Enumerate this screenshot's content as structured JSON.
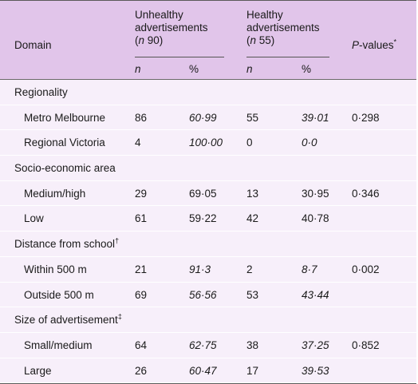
{
  "table": {
    "header": {
      "domain": "Domain",
      "unhealthy_title": "Unhealthy advertisements",
      "unhealthy_n_prefix": "(",
      "unhealthy_n_italic": "n",
      "unhealthy_n_value": " 90)",
      "healthy_title": "Healthy advertisements",
      "healthy_n_prefix": "(",
      "healthy_n_italic": "n",
      "healthy_n_value": " 55)",
      "pvalues_italic": "P",
      "pvalues_rest": "-values",
      "pvalues_mark": "*",
      "sub_n": "n",
      "sub_pct": "%"
    },
    "sections": [
      {
        "title": "Regionality",
        "mark": "",
        "rows": [
          {
            "label": "Metro Melbourne",
            "un": "86",
            "upct": "60·99",
            "hn": "55",
            "hpct": "39·01",
            "p": "0·298",
            "italic_pct": true
          },
          {
            "label": "Regional Victoria",
            "un": "4",
            "upct": "100·00",
            "hn": "0",
            "hpct": "0·0",
            "p": "",
            "italic_pct": true
          }
        ]
      },
      {
        "title": "Socio-economic area",
        "mark": "",
        "rows": [
          {
            "label": "Medium/high",
            "un": "29",
            "upct": "69·05",
            "hn": "13",
            "hpct": "30·95",
            "p": "0·346",
            "italic_pct": false
          },
          {
            "label": "Low",
            "un": "61",
            "upct": "59·22",
            "hn": "42",
            "hpct": "40·78",
            "p": "",
            "italic_pct": false
          }
        ]
      },
      {
        "title": "Distance from school",
        "mark": "†",
        "rows": [
          {
            "label": "Within 500 m",
            "un": "21",
            "upct": "91·3",
            "hn": "2",
            "hpct": "8·7",
            "p": "0·002",
            "italic_pct": true
          },
          {
            "label": "Outside 500 m",
            "un": "69",
            "upct": "56·56",
            "hn": "53",
            "hpct": "43·44",
            "p": "",
            "italic_pct": true
          }
        ]
      },
      {
        "title": "Size of advertisement",
        "mark": "‡",
        "rows": [
          {
            "label": "Small/medium",
            "un": "64",
            "upct": "62·75",
            "hn": "38",
            "hpct": "37·25",
            "p": "0·852",
            "italic_pct": true
          },
          {
            "label": "Large",
            "un": "26",
            "upct": "60·47",
            "hn": "17",
            "hpct": "39·53",
            "p": "",
            "italic_pct": true
          }
        ]
      }
    ]
  }
}
